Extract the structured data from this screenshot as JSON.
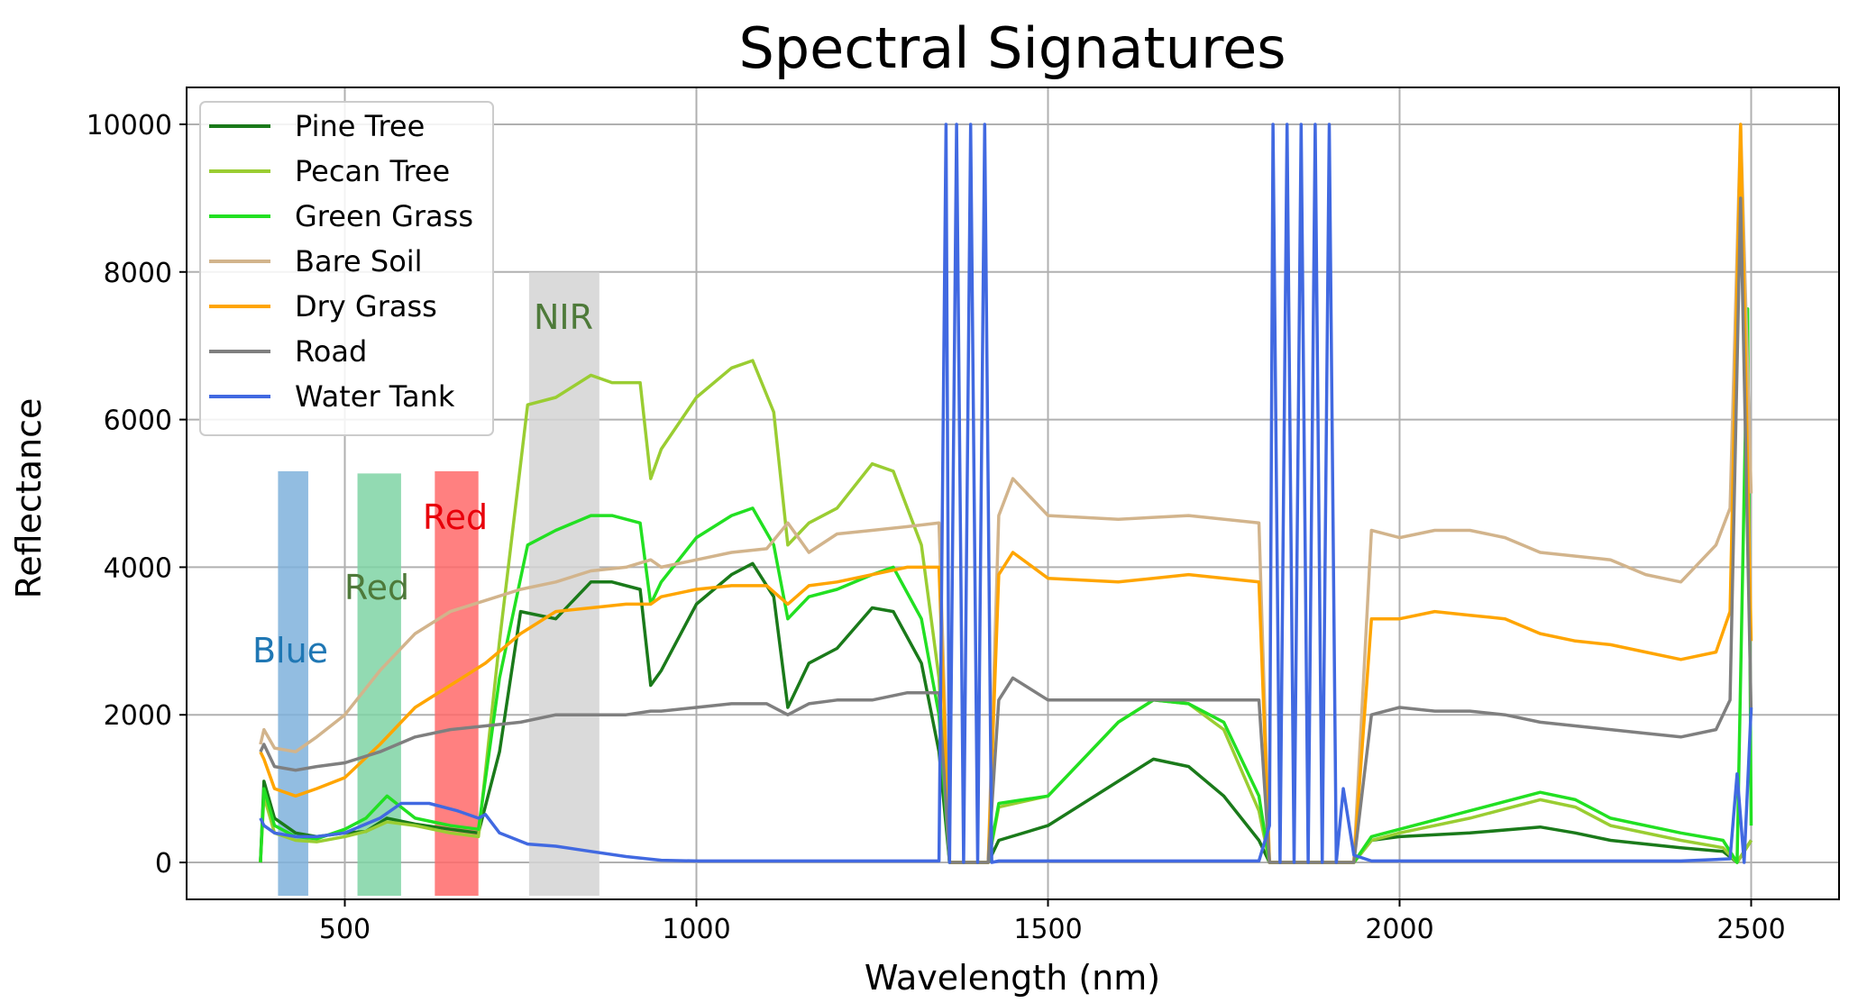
{
  "chart_data": {
    "type": "line",
    "title": "Spectral Signatures",
    "xlabel": "Wavelength (nm)",
    "ylabel": "Reflectance",
    "xlim": [
      275,
      2625
    ],
    "ylim": [
      -500,
      10500
    ],
    "xticks": [
      500,
      1000,
      1500,
      2000,
      2500
    ],
    "yticks": [
      0,
      2000,
      4000,
      6000,
      8000,
      10000
    ],
    "grid": true,
    "legend_position": "top-left",
    "bands": [
      {
        "label": "Blue",
        "x0": 405,
        "x1": 448,
        "y_top": 5300,
        "fill": "#7fb2dc",
        "text_color": "#1f77b4"
      },
      {
        "label": "Red",
        "x0": 518,
        "x1": 580,
        "y_top": 5270,
        "fill": "#7fd3a5",
        "text_color": "#4e7a3a"
      },
      {
        "label": "Red",
        "x0": 628,
        "x1": 690,
        "y_top": 5300,
        "fill": "#ff6a6a",
        "text_color": "#e8000b"
      },
      {
        "label": "NIR",
        "x0": 762,
        "x1": 862,
        "y_top": 8000,
        "fill": "#d3d3d3",
        "text_color": "#4e7a3a"
      }
    ],
    "series": [
      {
        "name": "Pine Tree",
        "color": "#1a7a1a",
        "x": [
          380,
          385,
          400,
          430,
          460,
          500,
          530,
          560,
          600,
          650,
          690,
          720,
          750,
          800,
          850,
          880,
          920,
          935,
          950,
          1000,
          1050,
          1080,
          1110,
          1130,
          1160,
          1200,
          1250,
          1280,
          1320,
          1345,
          1360,
          1390,
          1415,
          1430,
          1500,
          1600,
          1650,
          1700,
          1750,
          1800,
          1815,
          1840,
          1880,
          1920,
          1935,
          1960,
          2000,
          2100,
          2200,
          2250,
          2300,
          2400,
          2460,
          2480,
          2500
        ],
        "y": [
          0,
          1100,
          600,
          400,
          350,
          400,
          420,
          600,
          520,
          450,
          400,
          1500,
          3400,
          3300,
          3800,
          3800,
          3700,
          2400,
          2600,
          3500,
          3900,
          4050,
          3600,
          2100,
          2700,
          2900,
          3450,
          3400,
          2700,
          1500,
          0,
          0,
          0,
          300,
          500,
          1100,
          1400,
          1300,
          900,
          300,
          0,
          0,
          0,
          0,
          0,
          300,
          350,
          400,
          480,
          400,
          300,
          200,
          150,
          0,
          300
        ]
      },
      {
        "name": "Pecan Tree",
        "color": "#9acd32",
        "x": [
          380,
          385,
          400,
          430,
          460,
          500,
          530,
          560,
          600,
          650,
          690,
          720,
          760,
          800,
          850,
          880,
          920,
          935,
          950,
          1000,
          1050,
          1080,
          1110,
          1130,
          1160,
          1200,
          1250,
          1280,
          1320,
          1345,
          1360,
          1390,
          1415,
          1430,
          1500,
          1600,
          1650,
          1700,
          1750,
          1800,
          1815,
          1840,
          1880,
          1920,
          1935,
          1960,
          2000,
          2100,
          2200,
          2250,
          2300,
          2400,
          2460,
          2480,
          2500
        ],
        "y": [
          0,
          900,
          400,
          300,
          280,
          350,
          420,
          550,
          500,
          400,
          350,
          3000,
          6200,
          6300,
          6600,
          6500,
          6500,
          5200,
          5600,
          6300,
          6700,
          6800,
          6100,
          4300,
          4600,
          4800,
          5400,
          5300,
          4300,
          2500,
          0,
          0,
          0,
          750,
          900,
          1900,
          2200,
          2150,
          1800,
          700,
          0,
          0,
          0,
          0,
          0,
          300,
          400,
          600,
          850,
          750,
          500,
          300,
          200,
          0,
          300
        ]
      },
      {
        "name": "Green Grass",
        "color": "#22e022",
        "x": [
          380,
          385,
          400,
          430,
          460,
          500,
          530,
          560,
          600,
          650,
          690,
          720,
          760,
          800,
          850,
          880,
          920,
          935,
          950,
          1000,
          1050,
          1080,
          1110,
          1130,
          1160,
          1200,
          1250,
          1280,
          1320,
          1345,
          1360,
          1390,
          1415,
          1430,
          1500,
          1600,
          1650,
          1700,
          1750,
          1800,
          1815,
          1840,
          1880,
          1920,
          1935,
          1960,
          2000,
          2100,
          2200,
          2250,
          2300,
          2400,
          2460,
          2480,
          2495,
          2500
        ],
        "y": [
          0,
          1000,
          500,
          350,
          320,
          450,
          600,
          900,
          600,
          500,
          450,
          2500,
          4300,
          4500,
          4700,
          4700,
          4600,
          3500,
          3800,
          4400,
          4700,
          4800,
          4300,
          3300,
          3600,
          3700,
          3900,
          4000,
          3300,
          2000,
          0,
          0,
          0,
          800,
          900,
          1900,
          2200,
          2150,
          1900,
          900,
          0,
          0,
          0,
          0,
          0,
          350,
          450,
          700,
          950,
          850,
          600,
          400,
          300,
          0,
          7500,
          500
        ]
      },
      {
        "name": "Bare Soil",
        "color": "#d2b48c",
        "x": [
          380,
          385,
          400,
          430,
          460,
          500,
          550,
          600,
          650,
          700,
          750,
          800,
          850,
          900,
          935,
          950,
          1000,
          1050,
          1100,
          1130,
          1160,
          1200,
          1250,
          1300,
          1345,
          1360,
          1390,
          1415,
          1430,
          1450,
          1500,
          1600,
          1700,
          1800,
          1815,
          1840,
          1880,
          1920,
          1935,
          1960,
          2000,
          2050,
          2100,
          2150,
          2200,
          2250,
          2300,
          2350,
          2400,
          2450,
          2470,
          2485,
          2500
        ],
        "y": [
          1600,
          1800,
          1550,
          1500,
          1700,
          2000,
          2600,
          3100,
          3400,
          3550,
          3700,
          3800,
          3950,
          4000,
          4100,
          4000,
          4100,
          4200,
          4250,
          4600,
          4200,
          4450,
          4500,
          4550,
          4600,
          0,
          0,
          0,
          4700,
          5200,
          4700,
          4650,
          4700,
          4600,
          0,
          0,
          0,
          0,
          0,
          4500,
          4400,
          4500,
          4500,
          4400,
          4200,
          4150,
          4100,
          3900,
          3800,
          4300,
          4800,
          10000,
          5000
        ]
      },
      {
        "name": "Dry Grass",
        "color": "#ffa500",
        "x": [
          380,
          385,
          400,
          430,
          460,
          500,
          550,
          600,
          650,
          700,
          750,
          800,
          850,
          900,
          935,
          950,
          1000,
          1050,
          1100,
          1130,
          1160,
          1200,
          1250,
          1300,
          1345,
          1360,
          1390,
          1415,
          1430,
          1450,
          1500,
          1600,
          1700,
          1800,
          1815,
          1840,
          1880,
          1920,
          1935,
          1960,
          2000,
          2050,
          2100,
          2150,
          2200,
          2250,
          2300,
          2350,
          2400,
          2450,
          2470,
          2485,
          2500
        ],
        "y": [
          1500,
          1400,
          1000,
          900,
          1000,
          1150,
          1600,
          2100,
          2400,
          2700,
          3100,
          3400,
          3450,
          3500,
          3500,
          3600,
          3700,
          3750,
          3750,
          3500,
          3750,
          3800,
          3900,
          4000,
          4000,
          0,
          0,
          0,
          3900,
          4200,
          3850,
          3800,
          3900,
          3800,
          0,
          0,
          0,
          0,
          0,
          3300,
          3300,
          3400,
          3350,
          3300,
          3100,
          3000,
          2950,
          2850,
          2750,
          2850,
          3400,
          10000,
          3000
        ]
      },
      {
        "name": "Road",
        "color": "#7f7f7f",
        "x": [
          380,
          385,
          400,
          430,
          460,
          500,
          550,
          600,
          650,
          700,
          750,
          800,
          850,
          900,
          935,
          950,
          1000,
          1050,
          1100,
          1130,
          1160,
          1200,
          1250,
          1300,
          1345,
          1360,
          1390,
          1415,
          1430,
          1450,
          1500,
          1600,
          1700,
          1800,
          1815,
          1840,
          1880,
          1920,
          1935,
          1960,
          2000,
          2050,
          2100,
          2150,
          2200,
          2250,
          2300,
          2350,
          2400,
          2450,
          2470,
          2485,
          2500
        ],
        "y": [
          1500,
          1600,
          1300,
          1250,
          1300,
          1350,
          1500,
          1700,
          1800,
          1850,
          1900,
          2000,
          2000,
          2000,
          2050,
          2050,
          2100,
          2150,
          2150,
          2000,
          2150,
          2200,
          2200,
          2300,
          2300,
          0,
          0,
          0,
          2200,
          2500,
          2200,
          2200,
          2200,
          2200,
          0,
          0,
          0,
          0,
          0,
          2000,
          2100,
          2050,
          2050,
          2000,
          1900,
          1850,
          1800,
          1750,
          1700,
          1800,
          2200,
          9000,
          2000
        ]
      },
      {
        "name": "Water Tank",
        "color": "#4169e1",
        "x": [
          380,
          385,
          400,
          430,
          460,
          500,
          550,
          580,
          620,
          660,
          690,
          700,
          720,
          760,
          800,
          850,
          900,
          950,
          1000,
          1100,
          1200,
          1300,
          1345,
          1355,
          1360,
          1370,
          1380,
          1390,
          1400,
          1410,
          1420,
          1430,
          1500,
          1600,
          1700,
          1800,
          1815,
          1820,
          1830,
          1840,
          1850,
          1860,
          1870,
          1880,
          1890,
          1900,
          1910,
          1920,
          1935,
          1960,
          2000,
          2100,
          2200,
          2300,
          2400,
          2470,
          2480,
          2490,
          2500
        ],
        "y": [
          600,
          500,
          400,
          350,
          350,
          400,
          600,
          800,
          800,
          700,
          600,
          650,
          400,
          250,
          220,
          150,
          80,
          30,
          20,
          20,
          20,
          20,
          20,
          10000,
          0,
          10000,
          0,
          10000,
          0,
          10000,
          0,
          20,
          20,
          20,
          20,
          20,
          500,
          10000,
          0,
          10000,
          0,
          10000,
          0,
          10000,
          0,
          10000,
          0,
          1000,
          100,
          20,
          20,
          20,
          20,
          20,
          20,
          50,
          1200,
          0,
          2100
        ]
      }
    ]
  }
}
